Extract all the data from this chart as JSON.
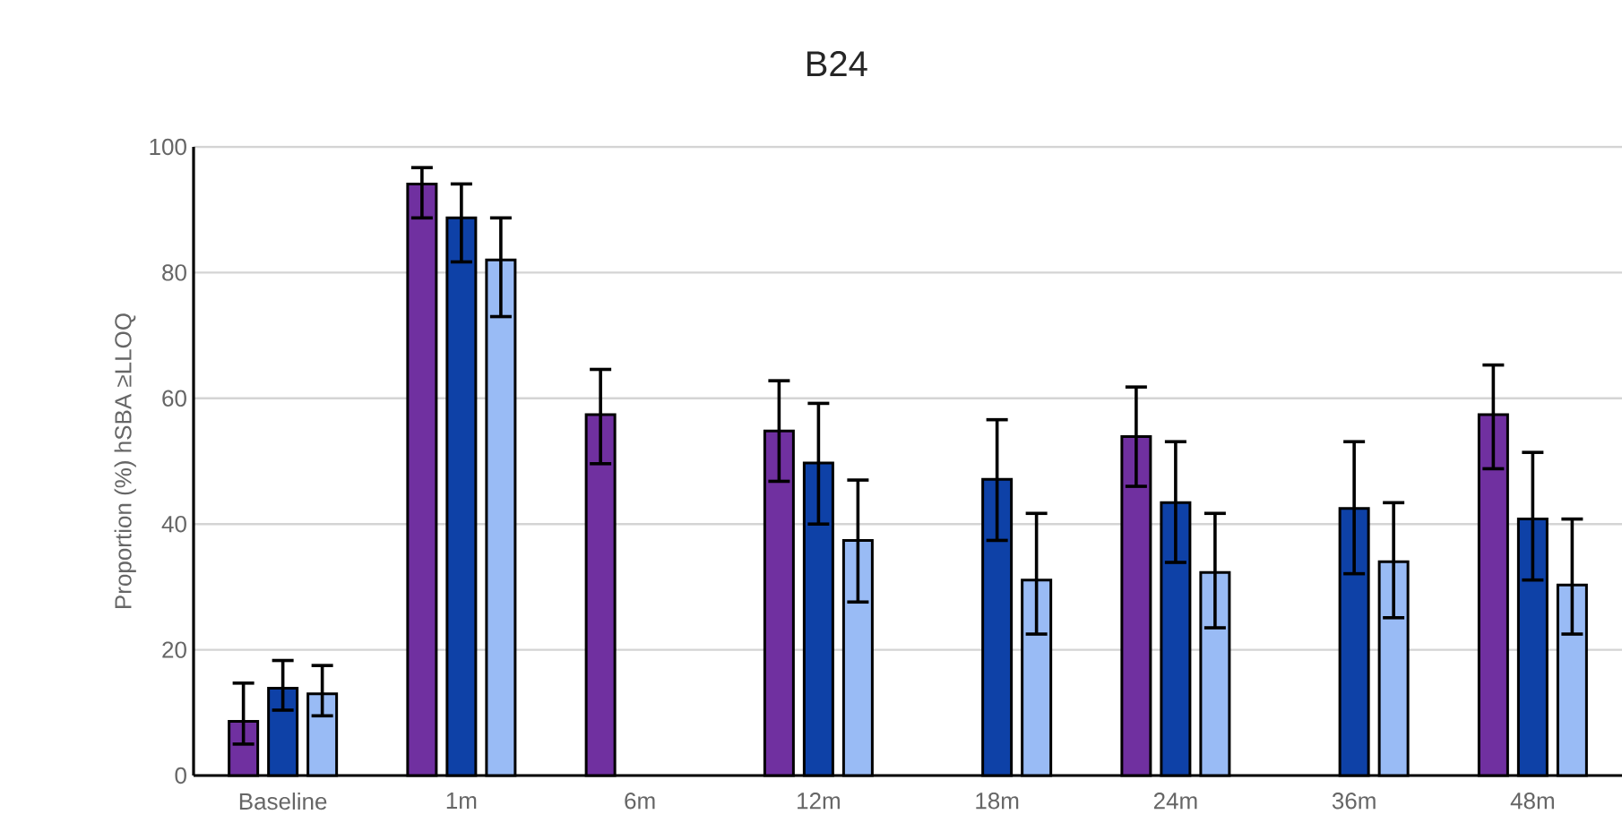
{
  "chart_data": {
    "type": "bar",
    "title": "B24",
    "ylabel": "Proportion (%) hSBA ≥LLOQ",
    "categories": [
      "Baseline",
      "1m",
      "6m",
      "12m",
      "18m",
      "24m",
      "36m",
      "48m"
    ],
    "series": [
      {
        "color": "#7030a0",
        "values": [
          8.6,
          94.1,
          57.4,
          54.8,
          null,
          53.9,
          null,
          57.4
        ],
        "errors": [
          [
            5.0,
            14.7
          ],
          [
            88.7,
            96.7
          ],
          [
            49.6,
            64.6
          ],
          [
            46.8,
            62.8
          ],
          null,
          [
            46.0,
            61.8
          ],
          null,
          [
            48.8,
            65.3
          ]
        ]
      },
      {
        "color": "#0e41a7",
        "values": [
          13.9,
          88.7,
          null,
          49.7,
          47.1,
          43.4,
          42.5,
          40.8
        ],
        "errors": [
          [
            10.4,
            18.3
          ],
          [
            81.7,
            94.1
          ],
          null,
          [
            40.0,
            59.2
          ],
          [
            37.4,
            56.6
          ],
          [
            33.9,
            53.1
          ],
          [
            32.1,
            53.1
          ],
          [
            31.1,
            51.4
          ]
        ]
      },
      {
        "color": "#99bbf5",
        "values": [
          13.0,
          82.0,
          null,
          37.4,
          31.1,
          32.3,
          34.0,
          30.3
        ],
        "errors": [
          [
            9.5,
            17.5
          ],
          [
            73.0,
            88.7
          ],
          null,
          [
            27.6,
            47.0
          ],
          [
            22.5,
            41.7
          ],
          [
            23.5,
            41.7
          ],
          [
            25.1,
            43.4
          ],
          [
            22.5,
            40.8
          ]
        ]
      }
    ],
    "ylim": [
      0,
      100
    ],
    "yticks": [
      0,
      20,
      40,
      60,
      80,
      100
    ],
    "grid": "y"
  }
}
